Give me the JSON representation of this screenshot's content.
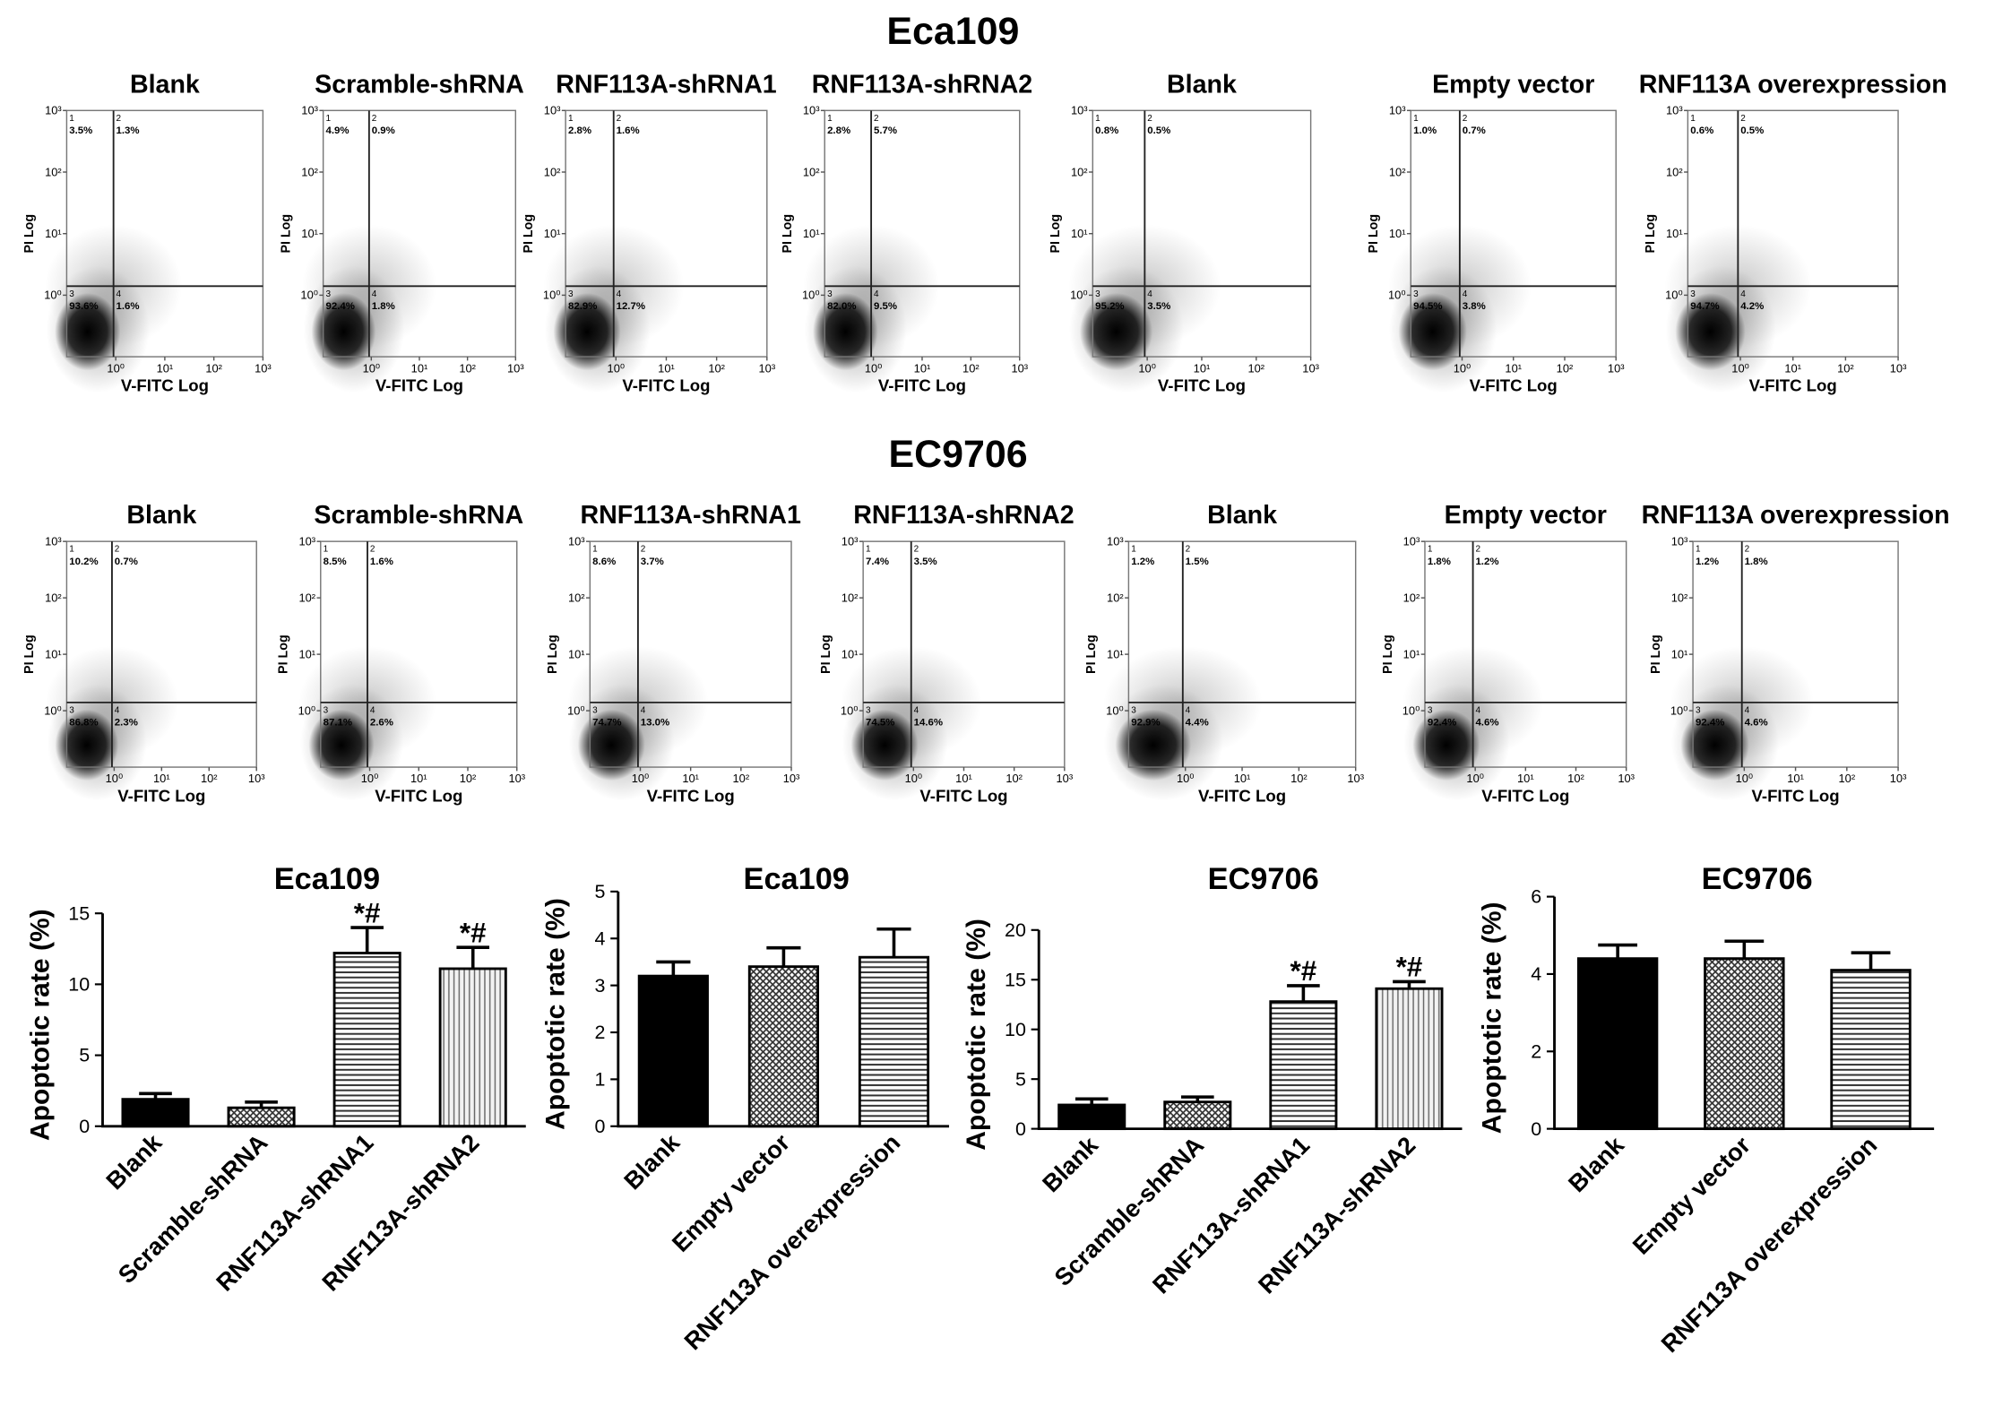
{
  "figure_titles": [
    "Eca109",
    "EC9706"
  ],
  "chart_data": [
    {
      "type": "flow",
      "title": "Blank",
      "xlabel": "V-FITC Log",
      "ylabel": "PI Log",
      "color": "#33cc33",
      "log_x": true,
      "log_y": true,
      "xlim": [
        0.1,
        1000
      ],
      "ylim": [
        0.1,
        1000
      ],
      "xticks": [
        {
          "value": 1,
          "label": "10⁰"
        },
        {
          "value": 10,
          "label": "10¹"
        },
        {
          "value": 100,
          "label": "10²"
        },
        {
          "value": 1000,
          "label": "10³"
        }
      ],
      "yticks": [
        {
          "value": 1,
          "label": "10⁰"
        },
        {
          "value": 10,
          "label": "10¹"
        },
        {
          "value": 100,
          "label": "10²"
        },
        {
          "value": 1000,
          "label": "10³"
        }
      ],
      "gate": [
        0.9,
        1.4
      ],
      "quadrants": [
        "1",
        "2",
        "3",
        "4"
      ],
      "values": [
        3.5,
        1.3,
        93.6,
        1.6
      ],
      "value_labels": [
        "3.5%",
        "1.3%",
        "93.6%",
        "1.6%"
      ]
    },
    {
      "type": "flow",
      "title": "Scramble-shRNA",
      "xlabel": "V-FITC Log",
      "ylabel": "PI Log",
      "color": "#33cc33",
      "log_x": true,
      "log_y": true,
      "xlim": [
        0.1,
        1000
      ],
      "ylim": [
        0.1,
        1000
      ],
      "xticks": [
        {
          "value": 1,
          "label": "10⁰"
        },
        {
          "value": 10,
          "label": "10¹"
        },
        {
          "value": 100,
          "label": "10²"
        },
        {
          "value": 1000,
          "label": "10³"
        }
      ],
      "yticks": [
        {
          "value": 1,
          "label": "10⁰"
        },
        {
          "value": 10,
          "label": "10¹"
        },
        {
          "value": 100,
          "label": "10²"
        },
        {
          "value": 1000,
          "label": "10³"
        }
      ],
      "gate": [
        0.9,
        1.4
      ],
      "quadrants": [
        "1",
        "2",
        "3",
        "4"
      ],
      "values": [
        4.9,
        0.9,
        92.4,
        1.8
      ],
      "value_labels": [
        "4.9%",
        "0.9%",
        "92.4%",
        "1.8%"
      ]
    },
    {
      "type": "flow",
      "title": "RNF113A-shRNA1",
      "xlabel": "V-FITC Log",
      "ylabel": "PI Log",
      "color": "#33cc33",
      "log_x": true,
      "log_y": true,
      "xlim": [
        0.1,
        1000
      ],
      "ylim": [
        0.1,
        1000
      ],
      "xticks": [
        {
          "value": 1,
          "label": "10⁰"
        },
        {
          "value": 10,
          "label": "10¹"
        },
        {
          "value": 100,
          "label": "10²"
        },
        {
          "value": 1000,
          "label": "10³"
        }
      ],
      "yticks": [
        {
          "value": 1,
          "label": "10⁰"
        },
        {
          "value": 10,
          "label": "10¹"
        },
        {
          "value": 100,
          "label": "10²"
        },
        {
          "value": 1000,
          "label": "10³"
        }
      ],
      "gate": [
        0.9,
        1.4
      ],
      "quadrants": [
        "1",
        "2",
        "3",
        "4"
      ],
      "values": [
        2.8,
        1.6,
        82.9,
        12.7
      ],
      "value_labels": [
        "2.8%",
        "1.6%",
        "82.9%",
        "12.7%"
      ]
    },
    {
      "type": "flow",
      "title": "RNF113A-shRNA2",
      "xlabel": "V-FITC Log",
      "ylabel": "PI Log",
      "color": "#33cc33",
      "log_x": true,
      "log_y": true,
      "xlim": [
        0.1,
        1000
      ],
      "ylim": [
        0.1,
        1000
      ],
      "xticks": [
        {
          "value": 1,
          "label": "10⁰"
        },
        {
          "value": 10,
          "label": "10¹"
        },
        {
          "value": 100,
          "label": "10²"
        },
        {
          "value": 1000,
          "label": "10³"
        }
      ],
      "yticks": [
        {
          "value": 1,
          "label": "10⁰"
        },
        {
          "value": 10,
          "label": "10¹"
        },
        {
          "value": 100,
          "label": "10²"
        },
        {
          "value": 1000,
          "label": "10³"
        }
      ],
      "gate": [
        0.9,
        1.4
      ],
      "quadrants": [
        "1",
        "2",
        "3",
        "4"
      ],
      "values": [
        2.8,
        5.7,
        82,
        9.5
      ],
      "value_labels": [
        "2.8%",
        "5.7%",
        "82.0%",
        "9.5%"
      ]
    },
    {
      "type": "flow",
      "title": "Blank",
      "xlabel": "V-FITC Log",
      "ylabel": "PI Log",
      "color": "#33cc33",
      "log_x": true,
      "log_y": true,
      "xlim": [
        0.1,
        1000
      ],
      "ylim": [
        0.1,
        1000
      ],
      "xticks": [
        {
          "value": 1,
          "label": "10⁰"
        },
        {
          "value": 10,
          "label": "10¹"
        },
        {
          "value": 100,
          "label": "10²"
        },
        {
          "value": 1000,
          "label": "10³"
        }
      ],
      "yticks": [
        {
          "value": 1,
          "label": "10⁰"
        },
        {
          "value": 10,
          "label": "10¹"
        },
        {
          "value": 100,
          "label": "10²"
        },
        {
          "value": 1000,
          "label": "10³"
        }
      ],
      "gate": [
        0.9,
        1.4
      ],
      "quadrants": [
        "1",
        "2",
        "3",
        "4"
      ],
      "values": [
        0.8,
        0.5,
        95.2,
        3.5
      ],
      "value_labels": [
        "0.8%",
        "0.5%",
        "95.2%",
        "3.5%"
      ]
    },
    {
      "type": "flow",
      "title": "Empty vector",
      "xlabel": "V-FITC Log",
      "ylabel": "PI Log",
      "color": "#33cc33",
      "log_x": true,
      "log_y": true,
      "xlim": [
        0.1,
        1000
      ],
      "ylim": [
        0.1,
        1000
      ],
      "xticks": [
        {
          "value": 1,
          "label": "10⁰"
        },
        {
          "value": 10,
          "label": "10¹"
        },
        {
          "value": 100,
          "label": "10²"
        },
        {
          "value": 1000,
          "label": "10³"
        }
      ],
      "yticks": [
        {
          "value": 1,
          "label": "10⁰"
        },
        {
          "value": 10,
          "label": "10¹"
        },
        {
          "value": 100,
          "label": "10²"
        },
        {
          "value": 1000,
          "label": "10³"
        }
      ],
      "gate": [
        0.9,
        1.4
      ],
      "quadrants": [
        "1",
        "2",
        "3",
        "4"
      ],
      "values": [
        1,
        0.7,
        94.5,
        3.8
      ],
      "value_labels": [
        "1.0%",
        "0.7%",
        "94.5%",
        "3.8%"
      ]
    },
    {
      "type": "flow",
      "title": "RNF113A overexpression",
      "xlabel": "V-FITC Log",
      "ylabel": "PI Log",
      "color": "#33cc33",
      "log_x": true,
      "log_y": true,
      "xlim": [
        0.1,
        1000
      ],
      "ylim": [
        0.1,
        1000
      ],
      "xticks": [
        {
          "value": 1,
          "label": "10⁰"
        },
        {
          "value": 10,
          "label": "10¹"
        },
        {
          "value": 100,
          "label": "10²"
        },
        {
          "value": 1000,
          "label": "10³"
        }
      ],
      "yticks": [
        {
          "value": 1,
          "label": "10⁰"
        },
        {
          "value": 10,
          "label": "10¹"
        },
        {
          "value": 100,
          "label": "10²"
        },
        {
          "value": 1000,
          "label": "10³"
        }
      ],
      "gate": [
        0.9,
        1.4
      ],
      "quadrants": [
        "1",
        "2",
        "3",
        "4"
      ],
      "values": [
        0.6,
        0.5,
        94.7,
        4.2
      ],
      "value_labels": [
        "0.6%",
        "0.5%",
        "94.7%",
        "4.2%"
      ]
    },
    {
      "type": "flow",
      "title": "Blank",
      "xlabel": "V-FITC Log",
      "ylabel": "PI Log",
      "color": "#33cc33",
      "log_x": true,
      "log_y": true,
      "xlim": [
        0.1,
        1000
      ],
      "ylim": [
        0.1,
        1000
      ],
      "xticks": [
        {
          "value": 1,
          "label": "10⁰"
        },
        {
          "value": 10,
          "label": "10¹"
        },
        {
          "value": 100,
          "label": "10²"
        },
        {
          "value": 1000,
          "label": "10³"
        }
      ],
      "yticks": [
        {
          "value": 1,
          "label": "10⁰"
        },
        {
          "value": 10,
          "label": "10¹"
        },
        {
          "value": 100,
          "label": "10²"
        },
        {
          "value": 1000,
          "label": "10³"
        }
      ],
      "gate": [
        0.9,
        1.4
      ],
      "quadrants": [
        "1",
        "2",
        "3",
        "4"
      ],
      "values": [
        10.2,
        0.7,
        86.8,
        2.3
      ],
      "value_labels": [
        "10.2%",
        "0.7%",
        "86.8%",
        "2.3%"
      ]
    },
    {
      "type": "flow",
      "title": "Scramble-shRNA",
      "xlabel": "V-FITC Log",
      "ylabel": "PI Log",
      "color": "#33cc33",
      "log_x": true,
      "log_y": true,
      "xlim": [
        0.1,
        1000
      ],
      "ylim": [
        0.1,
        1000
      ],
      "xticks": [
        {
          "value": 1,
          "label": "10⁰"
        },
        {
          "value": 10,
          "label": "10¹"
        },
        {
          "value": 100,
          "label": "10²"
        },
        {
          "value": 1000,
          "label": "10³"
        }
      ],
      "yticks": [
        {
          "value": 1,
          "label": "10⁰"
        },
        {
          "value": 10,
          "label": "10¹"
        },
        {
          "value": 100,
          "label": "10²"
        },
        {
          "value": 1000,
          "label": "10³"
        }
      ],
      "gate": [
        0.9,
        1.4
      ],
      "quadrants": [
        "1",
        "2",
        "3",
        "4"
      ],
      "values": [
        8.5,
        1.6,
        87.1,
        2.6
      ],
      "value_labels": [
        "8.5%",
        "1.6%",
        "87.1%",
        "2.6%"
      ]
    },
    {
      "type": "flow",
      "title": "RNF113A-shRNA1",
      "xlabel": "V-FITC Log",
      "ylabel": "PI Log",
      "color": "#33cc33",
      "log_x": true,
      "log_y": true,
      "xlim": [
        0.1,
        1000
      ],
      "ylim": [
        0.1,
        1000
      ],
      "xticks": [
        {
          "value": 1,
          "label": "10⁰"
        },
        {
          "value": 10,
          "label": "10¹"
        },
        {
          "value": 100,
          "label": "10²"
        },
        {
          "value": 1000,
          "label": "10³"
        }
      ],
      "yticks": [
        {
          "value": 1,
          "label": "10⁰"
        },
        {
          "value": 10,
          "label": "10¹"
        },
        {
          "value": 100,
          "label": "10²"
        },
        {
          "value": 1000,
          "label": "10³"
        }
      ],
      "gate": [
        0.9,
        1.4
      ],
      "quadrants": [
        "1",
        "2",
        "3",
        "4"
      ],
      "values": [
        8.6,
        3.7,
        74.7,
        13
      ],
      "value_labels": [
        "8.6%",
        "3.7%",
        "74.7%",
        "13.0%"
      ]
    },
    {
      "type": "flow",
      "title": "RNF113A-shRNA2",
      "xlabel": "V-FITC Log",
      "ylabel": "PI Log",
      "color": "#33cc33",
      "log_x": true,
      "log_y": true,
      "xlim": [
        0.1,
        1000
      ],
      "ylim": [
        0.1,
        1000
      ],
      "xticks": [
        {
          "value": 1,
          "label": "10⁰"
        },
        {
          "value": 10,
          "label": "10¹"
        },
        {
          "value": 100,
          "label": "10²"
        },
        {
          "value": 1000,
          "label": "10³"
        }
      ],
      "yticks": [
        {
          "value": 1,
          "label": "10⁰"
        },
        {
          "value": 10,
          "label": "10¹"
        },
        {
          "value": 100,
          "label": "10²"
        },
        {
          "value": 1000,
          "label": "10³"
        }
      ],
      "gate": [
        0.9,
        1.4
      ],
      "quadrants": [
        "1",
        "2",
        "3",
        "4"
      ],
      "values": [
        7.4,
        3.5,
        74.5,
        14.6
      ],
      "value_labels": [
        "7.4%",
        "3.5%",
        "74.5%",
        "14.6%"
      ]
    },
    {
      "type": "flow",
      "title": "Blank",
      "xlabel": "V-FITC Log",
      "ylabel": "PI Log",
      "color": "#33cc33",
      "log_x": true,
      "log_y": true,
      "xlim": [
        0.1,
        1000
      ],
      "ylim": [
        0.1,
        1000
      ],
      "xticks": [
        {
          "value": 1,
          "label": "10⁰"
        },
        {
          "value": 10,
          "label": "10¹"
        },
        {
          "value": 100,
          "label": "10²"
        },
        {
          "value": 1000,
          "label": "10³"
        }
      ],
      "yticks": [
        {
          "value": 1,
          "label": "10⁰"
        },
        {
          "value": 10,
          "label": "10¹"
        },
        {
          "value": 100,
          "label": "10²"
        },
        {
          "value": 1000,
          "label": "10³"
        }
      ],
      "gate": [
        0.9,
        1.4
      ],
      "quadrants": [
        "1",
        "2",
        "3",
        "4"
      ],
      "values": [
        1.2,
        1.5,
        92.9,
        4.4
      ],
      "value_labels": [
        "1.2%",
        "1.5%",
        "92.9%",
        "4.4%"
      ]
    },
    {
      "type": "flow",
      "title": "Empty vector",
      "xlabel": "V-FITC Log",
      "ylabel": "PI Log",
      "color": "#33cc33",
      "log_x": true,
      "log_y": true,
      "xlim": [
        0.1,
        1000
      ],
      "ylim": [
        0.1,
        1000
      ],
      "xticks": [
        {
          "value": 1,
          "label": "10⁰"
        },
        {
          "value": 10,
          "label": "10¹"
        },
        {
          "value": 100,
          "label": "10²"
        },
        {
          "value": 1000,
          "label": "10³"
        }
      ],
      "yticks": [
        {
          "value": 1,
          "label": "10⁰"
        },
        {
          "value": 10,
          "label": "10¹"
        },
        {
          "value": 100,
          "label": "10²"
        },
        {
          "value": 1000,
          "label": "10³"
        }
      ],
      "gate": [
        0.9,
        1.4
      ],
      "quadrants": [
        "1",
        "2",
        "3",
        "4"
      ],
      "values": [
        1.8,
        1.2,
        92.4,
        4.6
      ],
      "value_labels": [
        "1.8%",
        "1.2%",
        "92.4%",
        "4.6%"
      ]
    },
    {
      "type": "flow",
      "title": "RNF113A overexpression",
      "xlabel": "V-FITC Log",
      "ylabel": "PI Log",
      "color": "#33cc33",
      "log_x": true,
      "log_y": true,
      "xlim": [
        0.1,
        1000
      ],
      "ylim": [
        0.1,
        1000
      ],
      "xticks": [
        {
          "value": 1,
          "label": "10⁰"
        },
        {
          "value": 10,
          "label": "10¹"
        },
        {
          "value": 100,
          "label": "10²"
        },
        {
          "value": 1000,
          "label": "10³"
        }
      ],
      "yticks": [
        {
          "value": 1,
          "label": "10⁰"
        },
        {
          "value": 10,
          "label": "10¹"
        },
        {
          "value": 100,
          "label": "10²"
        },
        {
          "value": 1000,
          "label": "10³"
        }
      ],
      "gate": [
        0.9,
        1.4
      ],
      "quadrants": [
        "1",
        "2",
        "3",
        "4"
      ],
      "values": [
        1.2,
        1.8,
        92.4,
        4.6
      ],
      "value_labels": [
        "1.2%",
        "1.8%",
        "92.4%",
        "4.6%"
      ]
    },
    {
      "type": "bar",
      "title": "Eca109",
      "ylabel": "Apoptotic rate (%)",
      "categories": [
        "Blank",
        "Scramble-shRNA",
        "RNF113A-shRNA1",
        "RNF113A-shRNA2"
      ],
      "values": [
        1.9,
        1.3,
        12.2,
        11.1
      ],
      "errors": [
        0.4,
        0.4,
        1.8,
        1.5
      ],
      "annotations": [
        null,
        null,
        "*#",
        "*#"
      ],
      "patterns": [
        "solid",
        "crosshatch",
        "hlines",
        "vlines"
      ],
      "color": "#000000",
      "ylim": [
        0,
        15
      ],
      "yticks": [
        0,
        5,
        10,
        15
      ]
    },
    {
      "type": "bar",
      "title": "Eca109",
      "ylabel": "Apoptotic rate (%)",
      "categories": [
        "Blank",
        "Empty vector",
        "RNF113A overexpression"
      ],
      "values": [
        3.2,
        3.4,
        3.6
      ],
      "errors": [
        0.3,
        0.4,
        0.6
      ],
      "patterns": [
        "solid",
        "crosshatch",
        "hlines"
      ],
      "color": "#000000",
      "ylim": [
        0,
        5
      ],
      "yticks": [
        0,
        1,
        2,
        3,
        4,
        5
      ]
    },
    {
      "type": "bar",
      "title": "EC9706",
      "ylabel": "Apoptotic rate (%)",
      "categories": [
        "Blank",
        "Scramble-shRNA",
        "RNF113A-shRNA1",
        "RNF113A-shRNA2"
      ],
      "values": [
        2.4,
        2.7,
        12.8,
        14.1
      ],
      "errors": [
        0.6,
        0.5,
        1.6,
        0.7
      ],
      "annotations": [
        null,
        null,
        "*#",
        "*#"
      ],
      "patterns": [
        "solid",
        "crosshatch",
        "hlines",
        "vlines"
      ],
      "color": "#000000",
      "ylim": [
        0,
        20
      ],
      "yticks": [
        0,
        5,
        10,
        15,
        20
      ]
    },
    {
      "type": "bar",
      "title": "EC9706",
      "ylabel": "Apoptotic rate (%)",
      "categories": [
        "Blank",
        "Empty vector",
        "RNF113A overexpression"
      ],
      "values": [
        4.4,
        4.4,
        4.1
      ],
      "errors": [
        0.35,
        0.45,
        0.45
      ],
      "patterns": [
        "solid",
        "crosshatch",
        "hlines"
      ],
      "color": "#000000",
      "ylim": [
        0,
        6
      ],
      "yticks": [
        0,
        2,
        4,
        6
      ]
    }
  ]
}
